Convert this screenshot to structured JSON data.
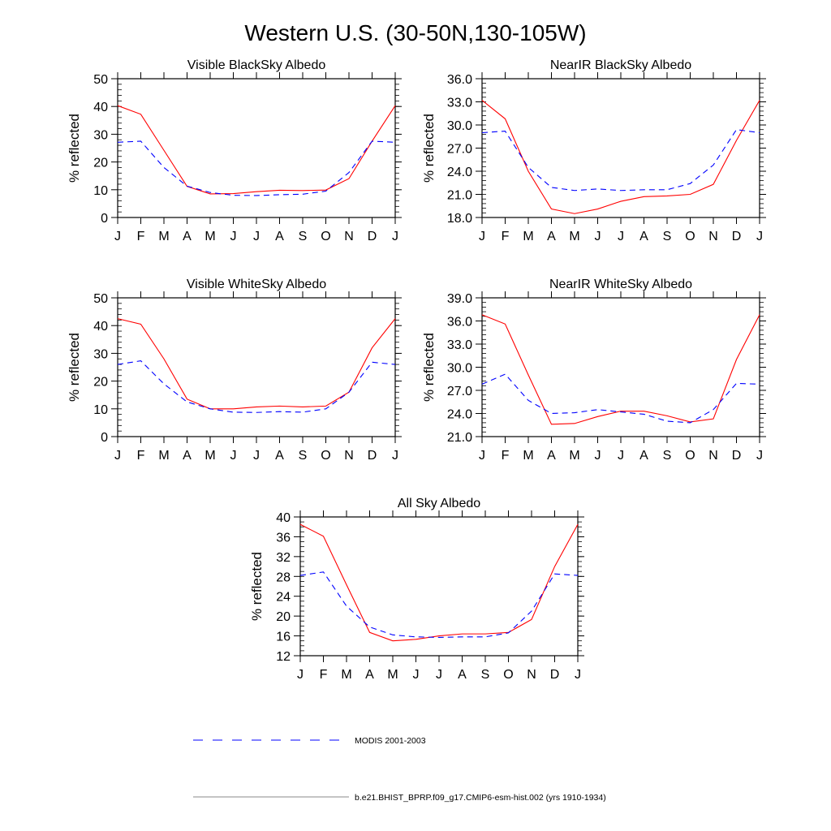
{
  "title": "Western U.S. (30-50N,130-105W)",
  "legend": [
    {
      "label": "MODIS 2001-2003",
      "color": "#0000ff",
      "style": "dashed"
    },
    {
      "label": "b.e21.BHIST_BPRP.f09_g17.CMIP6-esm-hist.002 (yrs 1910-1934)",
      "color": "#888888",
      "style": "solid"
    }
  ],
  "chart_data": [
    {
      "type": "line",
      "title": "Visible BlackSky Albedo",
      "xlabel": "",
      "ylabel": "% reflected",
      "categories": [
        "J",
        "F",
        "M",
        "A",
        "M",
        "J",
        "J",
        "A",
        "S",
        "O",
        "N",
        "D",
        "J"
      ],
      "ylim": [
        0,
        50
      ],
      "yticks": [
        "0",
        "10",
        "20",
        "30",
        "40",
        "50"
      ],
      "ymajor": 10,
      "yminor": 2,
      "series": [
        {
          "name": "model",
          "color": "#ff0000",
          "values": [
            40.3,
            37.2,
            24.2,
            11.2,
            8.5,
            8.6,
            9.3,
            9.8,
            9.7,
            9.9,
            14,
            27.5,
            40.3
          ]
        },
        {
          "name": "MODIS",
          "color": "#0000ff",
          "values": [
            27.1,
            27.5,
            18,
            11.3,
            9,
            8,
            7.9,
            8.2,
            8.4,
            9.5,
            16.2,
            27.5,
            27.1
          ]
        }
      ]
    },
    {
      "type": "line",
      "title": "NearIR BlackSky Albedo",
      "xlabel": "",
      "ylabel": "% reflected",
      "categories": [
        "J",
        "F",
        "M",
        "A",
        "M",
        "J",
        "J",
        "A",
        "S",
        "O",
        "N",
        "D",
        "J"
      ],
      "ylim": [
        18,
        36
      ],
      "yticks": [
        "18.0",
        "21.0",
        "24.0",
        "27.0",
        "30.0",
        "33.0",
        "36.0"
      ],
      "ymajor": 3,
      "yminor": 0.6,
      "series": [
        {
          "name": "model",
          "color": "#ff0000",
          "values": [
            33.2,
            30.8,
            24,
            19.1,
            18.5,
            19.1,
            20.1,
            20.7,
            20.8,
            21,
            22.3,
            28,
            33.2
          ]
        },
        {
          "name": "MODIS",
          "color": "#0000ff",
          "values": [
            29,
            29.2,
            24.5,
            21.9,
            21.5,
            21.7,
            21.5,
            21.6,
            21.6,
            22.4,
            24.8,
            29.4,
            29
          ]
        }
      ]
    },
    {
      "type": "line",
      "title": "Visible WhiteSky Albedo",
      "xlabel": "",
      "ylabel": "% reflected",
      "categories": [
        "J",
        "F",
        "M",
        "A",
        "M",
        "J",
        "J",
        "A",
        "S",
        "O",
        "N",
        "D",
        "J"
      ],
      "ylim": [
        0,
        50
      ],
      "yticks": [
        "0",
        "10",
        "20",
        "30",
        "40",
        "50"
      ],
      "ymajor": 10,
      "yminor": 2,
      "series": [
        {
          "name": "model",
          "color": "#ff0000",
          "values": [
            42.5,
            40.5,
            28,
            13.5,
            10,
            10,
            10.7,
            11,
            10.7,
            11,
            16,
            32,
            42.5
          ]
        },
        {
          "name": "MODIS",
          "color": "#0000ff",
          "values": [
            26,
            27.3,
            19,
            12.5,
            10,
            8.8,
            8.7,
            9,
            8.8,
            10,
            16,
            26.8,
            26
          ]
        }
      ]
    },
    {
      "type": "line",
      "title": "NearIR WhiteSky Albedo",
      "xlabel": "",
      "ylabel": "% reflected",
      "categories": [
        "J",
        "F",
        "M",
        "A",
        "M",
        "J",
        "J",
        "A",
        "S",
        "O",
        "N",
        "D",
        "J"
      ],
      "ylim": [
        21,
        39
      ],
      "yticks": [
        "21.0",
        "24.0",
        "27.0",
        "30.0",
        "33.0",
        "36.0",
        "39.0"
      ],
      "ymajor": 3,
      "yminor": 0.6,
      "series": [
        {
          "name": "model",
          "color": "#ff0000",
          "values": [
            36.8,
            35.6,
            29,
            22.6,
            22.7,
            23.6,
            24.3,
            24.3,
            23.7,
            22.9,
            23.3,
            31,
            36.8
          ]
        },
        {
          "name": "MODIS",
          "color": "#0000ff",
          "values": [
            27.8,
            29.1,
            25.7,
            24,
            24.1,
            24.5,
            24.2,
            23.9,
            23,
            22.8,
            24.5,
            27.9,
            27.8
          ]
        }
      ]
    },
    {
      "type": "line",
      "title": "All Sky Albedo",
      "xlabel": "",
      "ylabel": "% reflected",
      "categories": [
        "J",
        "F",
        "M",
        "A",
        "M",
        "J",
        "J",
        "A",
        "S",
        "O",
        "N",
        "D",
        "J"
      ],
      "ylim": [
        12,
        40
      ],
      "yticks": [
        "12",
        "16",
        "20",
        "24",
        "28",
        "32",
        "36",
        "40"
      ],
      "ymajor": 4,
      "yminor": 1,
      "series": [
        {
          "name": "model",
          "color": "#ff0000",
          "values": [
            38.5,
            36.1,
            26.3,
            16.7,
            15,
            15.3,
            16,
            16.4,
            16.4,
            16.7,
            19.3,
            30,
            38.5
          ]
        },
        {
          "name": "MODIS",
          "color": "#0000ff",
          "values": [
            28.2,
            28.9,
            22,
            17.8,
            16.2,
            15.8,
            15.7,
            15.8,
            15.8,
            16.6,
            21,
            28.5,
            28.2
          ]
        }
      ]
    }
  ]
}
